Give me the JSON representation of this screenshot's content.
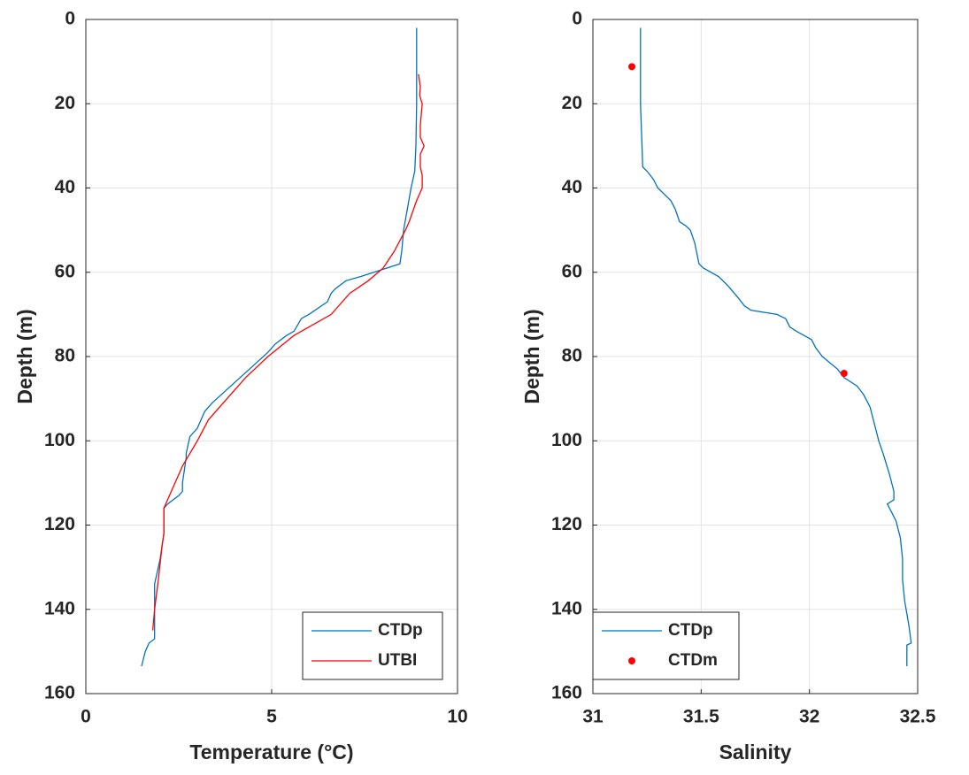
{
  "chart_data": [
    {
      "type": "line",
      "xlabel": "Temperature (°C)",
      "ylabel": "Depth (m)",
      "xlim": [
        0,
        10
      ],
      "xticks": [
        0,
        5,
        10
      ],
      "ylim": [
        0,
        160
      ],
      "yticks": [
        0,
        20,
        40,
        60,
        80,
        100,
        120,
        140,
        160
      ],
      "y_reversed": true,
      "grid": true,
      "legend": "lower right",
      "series": [
        {
          "name": "CTDp",
          "color": "#0072bd",
          "mode": "lines",
          "x": [
            8.9,
            8.9,
            8.9,
            8.88,
            8.85,
            8.75,
            8.65,
            8.55,
            8.5,
            8.45,
            8.1,
            7.4,
            7.0,
            6.7,
            6.6,
            6.5,
            6.0,
            5.8,
            5.6,
            5.4,
            5.1,
            4.9,
            4.4,
            3.9,
            3.4,
            3.2,
            3.0,
            2.8,
            2.7,
            2.7,
            2.6,
            2.6,
            2.5,
            2.2,
            2.1,
            2.1,
            2.1,
            2.05,
            2.0,
            1.9,
            1.85,
            1.85,
            1.85,
            1.7,
            1.6,
            1.5
          ],
          "values": [
            2,
            10,
            20,
            30,
            36,
            40,
            45,
            50,
            55,
            58,
            59,
            61,
            62,
            64,
            65,
            67,
            70,
            71,
            74,
            75,
            77,
            79,
            83,
            87,
            91,
            93,
            97,
            99,
            103,
            104,
            110,
            112,
            113,
            115,
            116,
            118,
            122,
            125,
            128,
            132,
            134,
            140,
            147,
            148,
            150,
            153.5
          ]
        },
        {
          "name": "UTBI",
          "color": "#ff0000",
          "mode": "lines",
          "x": [
            8.95,
            9.0,
            8.98,
            9.05,
            9.0,
            9.0,
            9.1,
            9.0,
            9.0,
            9.05,
            9.05,
            8.9,
            8.7,
            8.6,
            8.3,
            8.0,
            7.6,
            7.1,
            6.6,
            5.6,
            4.9,
            4.3,
            3.8,
            3.3,
            3.0,
            2.6,
            2.4,
            2.1,
            2.1,
            2.05,
            1.95,
            1.85,
            1.8
          ],
          "values": [
            13,
            16,
            18,
            20,
            25,
            28,
            30,
            32,
            35,
            37,
            40,
            43,
            48,
            50,
            55,
            59,
            62,
            65,
            70,
            75,
            80,
            85,
            90,
            95,
            100,
            106,
            110,
            116,
            122,
            125,
            133,
            140,
            145
          ]
        }
      ]
    },
    {
      "type": "line",
      "xlabel": "Salinity",
      "ylabel": "Depth (m)",
      "xlim": [
        31,
        32.5
      ],
      "xticks": [
        31,
        31.5,
        32,
        32.5
      ],
      "ylim": [
        0,
        160
      ],
      "yticks": [
        0,
        20,
        40,
        60,
        80,
        100,
        120,
        140,
        160
      ],
      "y_reversed": true,
      "grid": true,
      "legend": "lower left",
      "series": [
        {
          "name": "CTDp",
          "color": "#0072bd",
          "mode": "lines",
          "x": [
            31.22,
            31.22,
            31.23,
            31.25,
            31.28,
            31.3,
            31.36,
            31.38,
            31.4,
            31.43,
            31.45,
            31.47,
            31.49,
            31.51,
            31.58,
            31.62,
            31.67,
            31.7,
            31.73,
            31.85,
            31.89,
            31.91,
            31.94,
            32.01,
            32.03,
            32.06,
            32.13,
            32.16,
            32.22,
            32.25,
            32.28,
            32.3,
            32.32,
            32.34,
            32.37,
            32.39,
            32.39,
            32.36,
            32.37,
            32.4,
            32.42,
            32.43,
            32.43,
            32.44,
            32.46,
            32.47,
            32.45,
            32.45
          ],
          "values": [
            2,
            20,
            35,
            36,
            38,
            40,
            43,
            45,
            48,
            49,
            50,
            53,
            58,
            59,
            61,
            63,
            66,
            68,
            69,
            70,
            71,
            73,
            74,
            76,
            78,
            80,
            83,
            85,
            87,
            89,
            92,
            96,
            100,
            103,
            108,
            112,
            114,
            115,
            116,
            119,
            123,
            128,
            133,
            138,
            144,
            148,
            148.5,
            153.5
          ]
        },
        {
          "name": "CTDm",
          "color": "#ff0000",
          "mode": "markers",
          "x": [
            31.18,
            32.16
          ],
          "values": [
            11.2,
            84
          ]
        }
      ]
    }
  ]
}
